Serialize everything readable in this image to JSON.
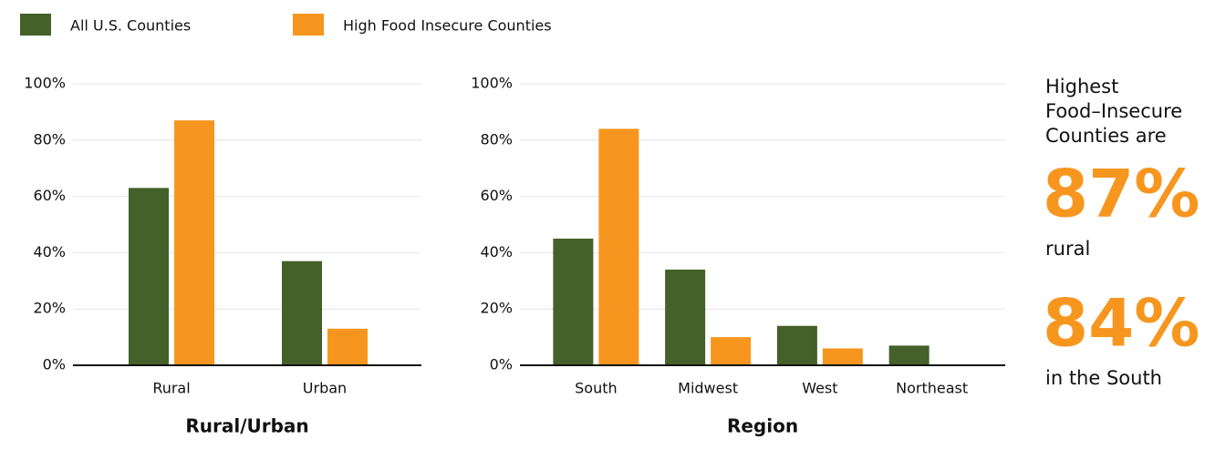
{
  "legend": [
    {
      "name": "All U.S. Counties",
      "color": "#436128"
    },
    {
      "name": "High Food Insecure Counties",
      "color": "#f7961e"
    }
  ],
  "chart_data": [
    {
      "type": "bar",
      "xlabel": "Rural/Urban",
      "categories": [
        "Rural",
        "Urban"
      ],
      "series": [
        {
          "values": [
            63,
            37
          ]
        },
        {
          "values": [
            87,
            13
          ]
        }
      ],
      "ylim": [
        0,
        100
      ],
      "yticks": [
        {
          "value": 0,
          "label": "0%"
        },
        {
          "value": 20,
          "label": "20%"
        },
        {
          "value": 40,
          "label": "40%"
        },
        {
          "value": 60,
          "label": "60%"
        },
        {
          "value": 80,
          "label": "80%"
        },
        {
          "value": 100,
          "label": "100%"
        }
      ],
      "grid": true
    },
    {
      "type": "bar",
      "xlabel": "Region",
      "categories": [
        "South",
        "Midwest",
        "West",
        "Northeast"
      ],
      "series": [
        {
          "values": [
            45,
            34,
            14,
            7
          ]
        },
        {
          "values": [
            84,
            10,
            6,
            0
          ]
        }
      ],
      "ylim": [
        0,
        100
      ],
      "yticks": [
        {
          "value": 0,
          "label": "0%"
        },
        {
          "value": 20,
          "label": "20%"
        },
        {
          "value": 40,
          "label": "40%"
        },
        {
          "value": 60,
          "label": "60%"
        },
        {
          "value": 80,
          "label": "80%"
        },
        {
          "value": 100,
          "label": "100%"
        }
      ],
      "grid": true
    }
  ],
  "callout": {
    "heading": [
      "Highest",
      "Food–Insecure",
      "Counties are"
    ],
    "stats": [
      {
        "value": "87%",
        "label": "rural"
      },
      {
        "value": "84%",
        "label": "in the South"
      }
    ]
  }
}
